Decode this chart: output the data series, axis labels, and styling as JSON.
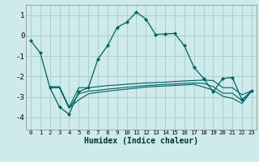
{
  "xlabel": "Humidex (Indice chaleur)",
  "bg_color": "#ceeaea",
  "grid_color": "#aacfcf",
  "line_color": "#006060",
  "xlim": [
    -0.5,
    23.5
  ],
  "ylim": [
    -4.6,
    1.5
  ],
  "yticks": [
    -4,
    -3,
    -2,
    -1,
    0,
    1
  ],
  "xticks": [
    0,
    1,
    2,
    3,
    4,
    5,
    6,
    7,
    8,
    9,
    10,
    11,
    12,
    13,
    14,
    15,
    16,
    17,
    18,
    19,
    20,
    21,
    22,
    23
  ],
  "line1_x": [
    0,
    1,
    2,
    3,
    4,
    5,
    6,
    7,
    8,
    9,
    10,
    11,
    12,
    13,
    14,
    15,
    16,
    17,
    18,
    19,
    20,
    21,
    22,
    23
  ],
  "line1_y": [
    -0.25,
    -0.85,
    -2.55,
    -3.5,
    -3.85,
    -2.75,
    -2.55,
    -1.15,
    -0.5,
    0.4,
    0.65,
    1.15,
    0.8,
    0.05,
    0.08,
    0.1,
    -0.5,
    -1.55,
    -2.1,
    -2.75,
    -2.1,
    -2.05,
    -3.15,
    -2.7
  ],
  "line2_x": [
    2,
    3,
    4,
    5,
    6,
    7,
    8,
    9,
    10,
    11,
    12,
    13,
    14,
    15,
    16,
    17,
    18,
    19,
    20,
    21,
    22,
    23
  ],
  "line2_y": [
    -2.5,
    -2.5,
    -3.5,
    -2.55,
    -2.55,
    -2.5,
    -2.45,
    -2.42,
    -2.38,
    -2.35,
    -2.32,
    -2.3,
    -2.28,
    -2.25,
    -2.22,
    -2.2,
    -2.18,
    -2.2,
    -2.55,
    -2.55,
    -2.9,
    -2.7
  ],
  "line3_x": [
    2,
    3,
    4,
    5,
    6,
    7,
    8,
    9,
    10,
    11,
    12,
    13,
    14,
    15,
    16,
    17,
    18,
    19,
    20,
    21,
    22,
    23
  ],
  "line3_y": [
    -2.55,
    -2.55,
    -3.55,
    -2.85,
    -2.72,
    -2.68,
    -2.62,
    -2.58,
    -2.53,
    -2.49,
    -2.45,
    -2.42,
    -2.39,
    -2.37,
    -2.34,
    -2.32,
    -2.34,
    -2.5,
    -2.82,
    -2.82,
    -3.18,
    -2.72
  ],
  "line4_x": [
    2,
    3,
    4,
    5,
    6,
    7,
    8,
    9,
    10,
    11,
    12,
    13,
    14,
    15,
    16,
    17,
    18,
    19,
    20,
    21,
    22,
    23
  ],
  "line4_y": [
    -2.55,
    -2.55,
    -3.55,
    -3.15,
    -2.85,
    -2.78,
    -2.72,
    -2.67,
    -2.62,
    -2.57,
    -2.52,
    -2.49,
    -2.47,
    -2.44,
    -2.42,
    -2.39,
    -2.52,
    -2.67,
    -2.97,
    -3.07,
    -3.32,
    -2.72
  ]
}
